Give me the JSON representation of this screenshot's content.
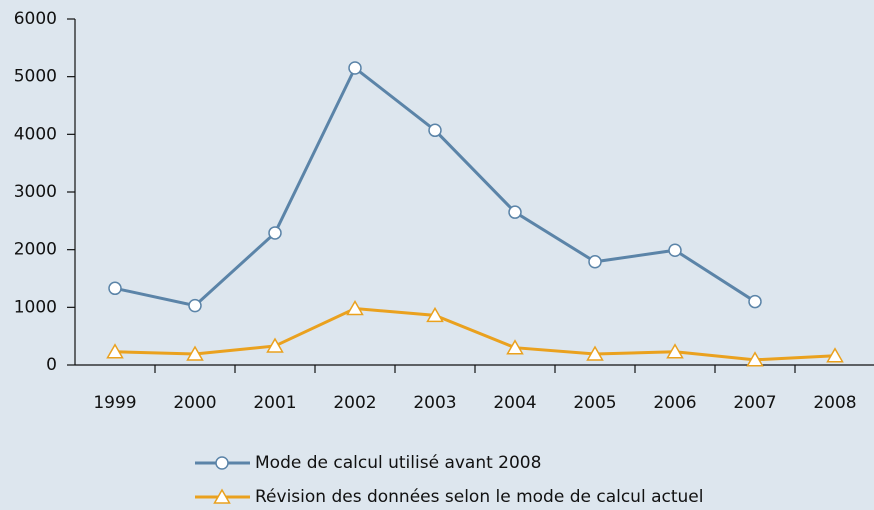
{
  "chart_data": {
    "type": "line",
    "categories": [
      "1999",
      "2000",
      "2001",
      "2002",
      "2003",
      "2004",
      "2005",
      "2006",
      "2007",
      "2008"
    ],
    "series": [
      {
        "name": "Mode de calcul utilisé avant 2008",
        "color": "#5b84a8",
        "marker": "circle",
        "values": [
          1330,
          1030,
          2290,
          5150,
          4070,
          2650,
          1790,
          1990,
          1100,
          null
        ]
      },
      {
        "name": "Révision des données selon le mode de calcul actuel",
        "color": "#eaa11e",
        "marker": "triangle",
        "values": [
          230,
          190,
          330,
          980,
          860,
          300,
          190,
          230,
          90,
          160
        ]
      }
    ],
    "ylim": [
      0,
      6000
    ],
    "yticks": [
      0,
      1000,
      2000,
      3000,
      4000,
      5000,
      6000
    ],
    "grid": false
  }
}
